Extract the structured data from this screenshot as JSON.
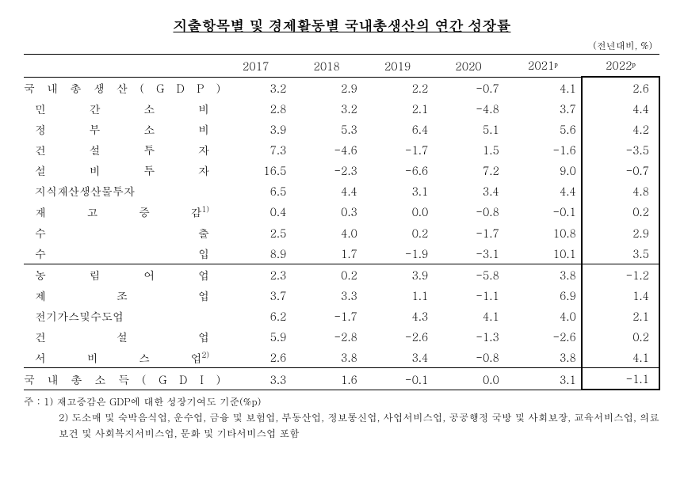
{
  "title": "지출항목별 및 경제활동별 국내총생산의 연간 성장률",
  "unit_label": "(전년대비, %)",
  "columns": [
    "2017",
    "2018",
    "2019",
    "2020",
    "2021ᵖ",
    "2022ᵖ"
  ],
  "sections": [
    {
      "header": null,
      "rows": [
        {
          "label": "국 내 총 생 산 ( G D P )",
          "main": true,
          "sup": "",
          "values": [
            "3.2",
            "2.9",
            "2.2",
            "-0.7",
            "4.1",
            "2.6"
          ]
        },
        {
          "label": "민 간 소 비",
          "main": false,
          "sup": "",
          "values": [
            "2.8",
            "3.2",
            "2.1",
            "-4.8",
            "3.7",
            "4.4"
          ]
        },
        {
          "label": "정 부 소 비",
          "main": false,
          "sup": "",
          "values": [
            "3.9",
            "5.3",
            "6.4",
            "5.1",
            "5.6",
            "4.2"
          ]
        },
        {
          "label": "건 설 투 자",
          "main": false,
          "sup": "",
          "values": [
            "7.3",
            "-4.6",
            "-1.7",
            "1.5",
            "-1.6",
            "-3.5"
          ]
        },
        {
          "label": "설 비 투 자",
          "main": false,
          "sup": "",
          "values": [
            "16.5",
            "-2.3",
            "-6.6",
            "7.2",
            "9.0",
            "-0.7"
          ]
        },
        {
          "label": "지식재산생산물투자",
          "main": false,
          "sup": "",
          "values": [
            "6.5",
            "4.4",
            "3.1",
            "3.4",
            "4.4",
            "4.8"
          ]
        },
        {
          "label": "재 고 증 감",
          "main": false,
          "sup": "1)",
          "values": [
            "0.4",
            "0.3",
            "0.0",
            "-0.8",
            "-0.1",
            "0.2"
          ]
        },
        {
          "label": "수 출",
          "main": false,
          "sup": "",
          "values": [
            "2.5",
            "4.0",
            "0.2",
            "-1.7",
            "10.8",
            "2.9"
          ]
        },
        {
          "label": "수 입",
          "main": false,
          "sup": "",
          "values": [
            "8.9",
            "1.7",
            "-1.9",
            "-3.1",
            "10.1",
            "3.5"
          ]
        }
      ]
    },
    {
      "header": null,
      "rows": [
        {
          "label": "농 림 어 업",
          "main": false,
          "sup": "",
          "values": [
            "2.3",
            "0.2",
            "3.9",
            "-5.8",
            "3.8",
            "-1.2"
          ]
        },
        {
          "label": "제 조 업",
          "main": false,
          "sup": "",
          "values": [
            "3.7",
            "3.3",
            "1.1",
            "-1.1",
            "6.9",
            "1.4"
          ]
        },
        {
          "label": "전기가스및수도업",
          "main": false,
          "sup": "",
          "values": [
            "6.2",
            "-1.7",
            "4.3",
            "4.1",
            "4.0",
            "2.1"
          ]
        },
        {
          "label": "건 설 업",
          "main": false,
          "sup": "",
          "values": [
            "5.9",
            "-2.8",
            "-2.6",
            "-1.3",
            "-2.6",
            "0.2"
          ]
        },
        {
          "label": "서 비 스 업",
          "main": false,
          "sup": "2)",
          "values": [
            "2.6",
            "3.8",
            "3.4",
            "-0.8",
            "3.8",
            "4.1"
          ]
        }
      ]
    },
    {
      "header": null,
      "rows": [
        {
          "label": "국 내 총 소 득 ( G D I )",
          "main": true,
          "sup": "",
          "values": [
            "3.3",
            "1.6",
            "-0.1",
            "0.0",
            "3.1",
            "-1.1"
          ]
        }
      ]
    }
  ],
  "footnotes": {
    "lead": "주 : ",
    "items": [
      "1) 재고증감은 GDP에 대한 성장기여도 기준(%p)",
      "2) 도소매 및 숙박음식업, 운수업, 금융 및 보험업, 부동산업, 정보통신업, 사업서비스업, 공공행정 국방 및 사회보장, 교육서비스업, 의료보건 및 사회복지서비스업, 문화 및 기타서비스업 포함"
    ]
  }
}
